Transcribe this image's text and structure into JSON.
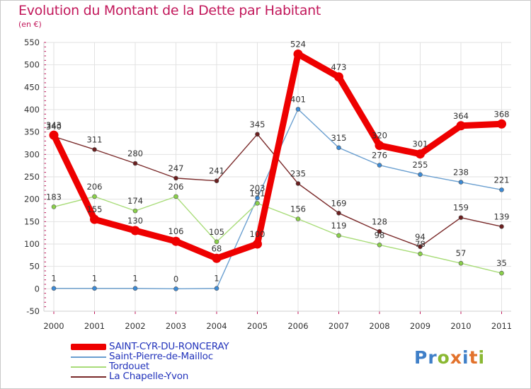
{
  "title": "Evolution du Montant de la Dette par Habitant",
  "subtitle": "(en €)",
  "logo": "Proxiti",
  "colors": {
    "title": "#c2185b",
    "grid": "#e2e2e2",
    "axis_text": "#333333",
    "tick": "#c2185b"
  },
  "chart_data": {
    "type": "line",
    "x": [
      "2000",
      "2001",
      "2002",
      "2003",
      "2004",
      "2005",
      "2006",
      "2007",
      "2008",
      "2009",
      "2010",
      "2011"
    ],
    "ylim": [
      -50,
      550
    ],
    "yticks": [
      -50,
      0,
      50,
      100,
      150,
      200,
      250,
      300,
      350,
      400,
      450,
      500,
      550
    ],
    "grid": true,
    "legend_position": "bottom-left",
    "series": [
      {
        "name": "SAINT-CYR-DU-RONCERAY",
        "color": "#ee0000",
        "marker_color": "#ee0000",
        "thick": true,
        "values": [
          343,
          155,
          130,
          106,
          68,
          100,
          524,
          473,
          320,
          301,
          364,
          368
        ],
        "labels": [
          "343",
          "155",
          "130",
          "106",
          "68",
          "100",
          "524",
          "473",
          "320",
          "301",
          "364",
          "368"
        ]
      },
      {
        "name": "Saint-Pierre-de-Mailloc",
        "color": "#6a9fd0",
        "marker_color": "#3b8ad6",
        "thick": false,
        "values": [
          1,
          1,
          1,
          0,
          1,
          203,
          401,
          315,
          276,
          255,
          238,
          221
        ],
        "labels": [
          "1",
          "1",
          "1",
          "0",
          "1",
          "203",
          "401",
          "315",
          "276",
          "255",
          "238",
          "221"
        ]
      },
      {
        "name": "Tordouet",
        "color": "#a8dc78",
        "marker_color": "#8ad04a",
        "thick": false,
        "values": [
          183,
          206,
          174,
          206,
          105,
          191,
          156,
          119,
          98,
          78,
          57,
          35
        ],
        "labels": [
          "183",
          "206",
          "174",
          "206",
          "105",
          "191",
          "156",
          "119",
          "98",
          "78",
          "57",
          "35"
        ]
      },
      {
        "name": "La Chapelle-Yvon",
        "color": "#7a2a2a",
        "marker_color": "#6b1f1f",
        "thick": false,
        "values": [
          340,
          311,
          280,
          247,
          241,
          345,
          235,
          169,
          128,
          94,
          159,
          139
        ],
        "labels": [
          "340",
          "311",
          "280",
          "247",
          "241",
          "345",
          "235",
          "169",
          "128",
          "94",
          "159",
          "139"
        ]
      }
    ]
  }
}
